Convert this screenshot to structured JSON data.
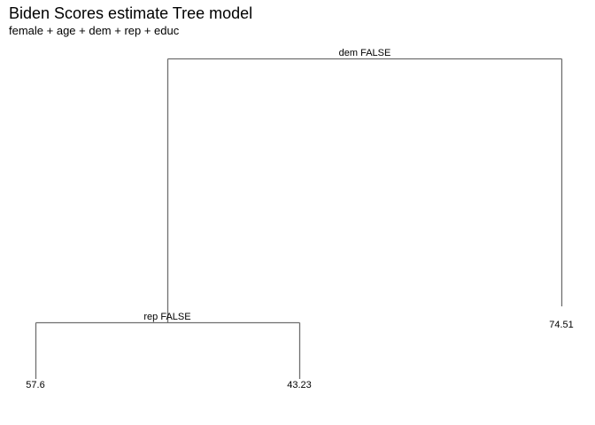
{
  "title": "Biden Scores estimate Tree model",
  "subtitle": "female + age + dem + rep + educ",
  "tree": {
    "splits": [
      {
        "label": "dem FALSE"
      },
      {
        "label": "rep FALSE"
      }
    ],
    "leaves": [
      {
        "value": "57.6"
      },
      {
        "value": "43.23"
      },
      {
        "value": "74.51"
      }
    ]
  },
  "colors": {
    "branch": "#6e6e6e",
    "text": "#000000",
    "background": "#ffffff"
  }
}
